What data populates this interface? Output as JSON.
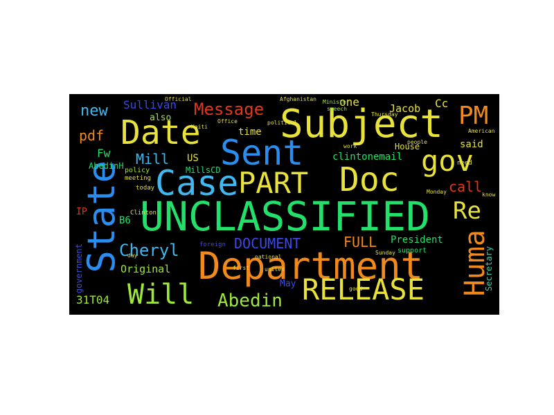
{
  "words": {
    "unclassified": "UNCLASSIFIED",
    "department": "Department",
    "subject": "Subject",
    "state": "State",
    "sent": "Sent",
    "date": "Date",
    "case": "Case",
    "doc": "Doc",
    "part": "PART",
    "release": "RELEASE",
    "will": "Will",
    "huma": "Huma",
    "gov": "gov",
    "pm": "PM",
    "re": "Re",
    "abedin": "Abedin",
    "cheryl": "Cheryl",
    "message": "Message",
    "document": "DOCUMENT",
    "full": "FULL",
    "new": "new",
    "pdf": "pdf",
    "mill": "Mill",
    "call": "call",
    "sullivan": "Sullivan",
    "jacob": "Jacob",
    "clintonemail": "clintonemail",
    "president": "President",
    "original": "Original",
    "secretary": "Secretary",
    "government": "government",
    "one": "one",
    "cc": "Cc",
    "fw": "Fw",
    "us": "US",
    "millscd": "MillsCD",
    "abedinh": "AbedinH",
    "time": "time",
    "also": "also",
    "house": "House",
    "said": "said",
    "b6": "B6",
    "ip": "IP",
    "code": "31T04",
    "may": "May",
    "policy": "policy",
    "meeting": "meeting",
    "today": "today",
    "clinton": "Clinton",
    "support": "support",
    "sunday": "Sunday",
    "first": "first",
    "thursday": "Thursday",
    "speech": "speech",
    "minister": "Minister",
    "official": "Official",
    "office": "Office",
    "american": "American",
    "national": "national",
    "united": "united",
    "people": "people",
    "need": "need",
    "work": "work",
    "good": "good",
    "foreign": "foreign",
    "haiti": "Haiti",
    "monday": "Monday",
    "afghanistan": "Afghanistan",
    "political": "political",
    "know": "know",
    "day": "day"
  },
  "colors": {
    "background": "#000000",
    "green": "#22e06a",
    "orange": "#f08a1c",
    "yellow": "#e8e23a",
    "blue": "#2a8ef0",
    "sky": "#40b8f0",
    "red": "#e0391c",
    "lime": "#9ee83a",
    "navy": "#3a4ae8",
    "teal": "#2ad8b8"
  }
}
